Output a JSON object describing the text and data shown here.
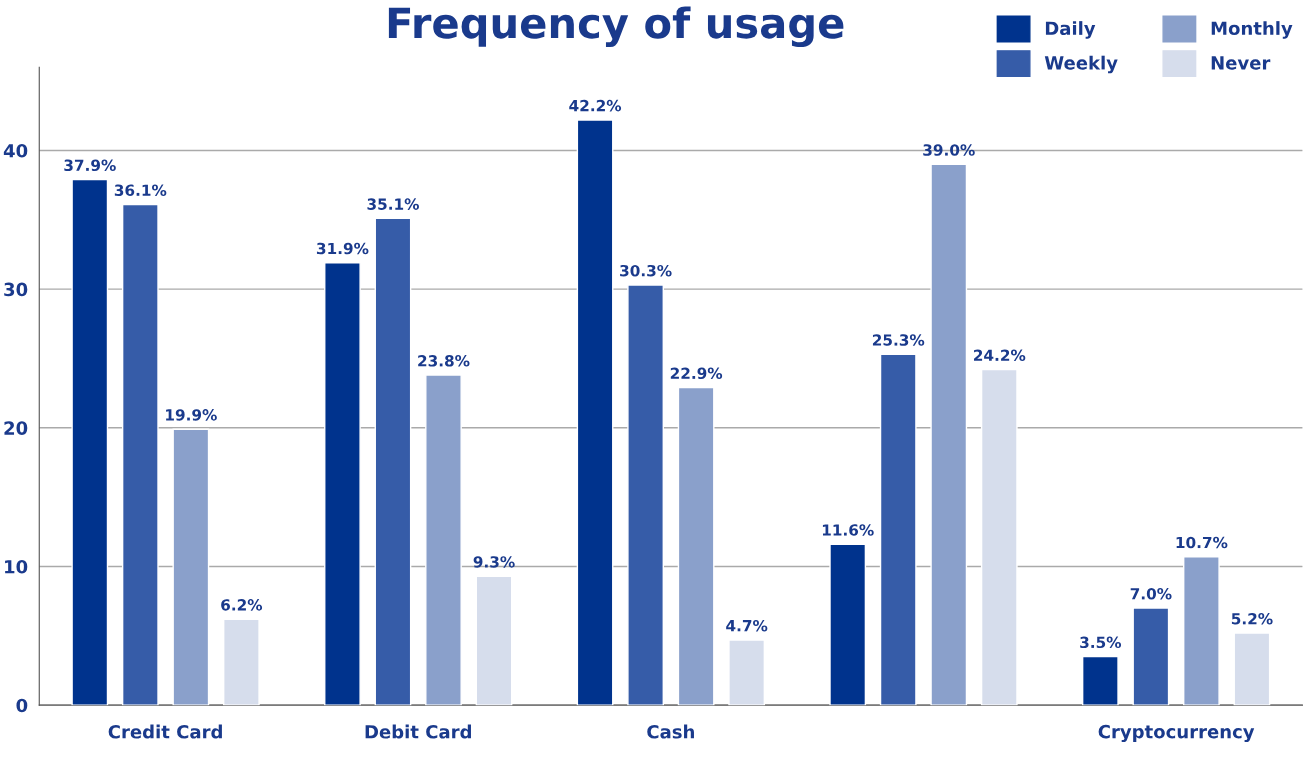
{
  "chart_data": {
    "type": "bar",
    "title": "Frequency of usage",
    "categories": [
      "Credit Card",
      "Debit Card",
      "Cash",
      null,
      "Cryptocurrency"
    ],
    "series": [
      {
        "name": "Daily",
        "color": "#00338d",
        "values": [
          37.9,
          31.9,
          42.2,
          11.6,
          3.5
        ],
        "value_labels": [
          "37.9%",
          "31.9%",
          "42.2%",
          "11.6%",
          "3.5%"
        ]
      },
      {
        "name": "Weekly",
        "color": "#365ca8",
        "values": [
          36.1,
          35.1,
          30.3,
          25.3,
          7.0
        ],
        "value_labels": [
          "36.1%",
          "35.1%",
          "30.3%",
          "25.3%",
          "7.0%"
        ]
      },
      {
        "name": "Monthly",
        "color": "#8aa0cb",
        "values": [
          19.9,
          23.8,
          22.9,
          39.0,
          10.7
        ],
        "value_labels": [
          "19.9%",
          "23.8%",
          "22.9%",
          "39.0%",
          "10.7%"
        ]
      },
      {
        "name": "Never",
        "color": "#d6ddec",
        "values": [
          6.2,
          9.3,
          4.7,
          24.2,
          5.2
        ],
        "value_labels": [
          "6.2%",
          "9.3%",
          "4.7%",
          "24.2%",
          "5.2%"
        ]
      }
    ],
    "ylim": [
      0,
      46
    ],
    "yticks": [
      0,
      10,
      20,
      30,
      40
    ],
    "grid": "y",
    "legend": "top right"
  }
}
